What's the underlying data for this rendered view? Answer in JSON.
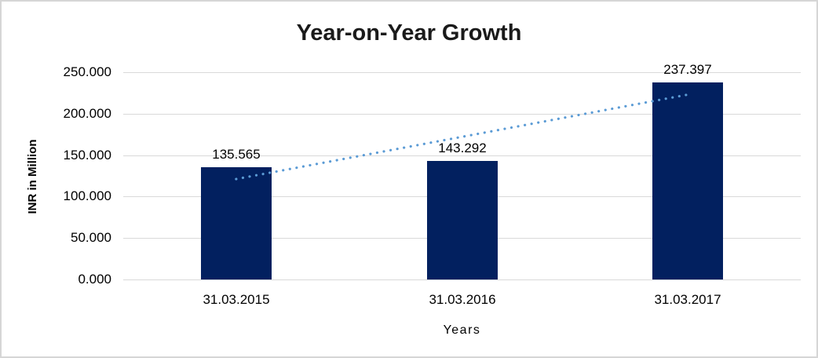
{
  "chart_data": {
    "type": "bar",
    "title": "Year-on-Year Growth",
    "categories": [
      "31.03.2015",
      "31.03.2016",
      "31.03.2017"
    ],
    "values": [
      135.565,
      143.292,
      237.397
    ],
    "value_labels": [
      "135.565",
      "143.292",
      "237.397"
    ],
    "xlabel": "Years",
    "ylabel": "INR in Million",
    "ylim": [
      0,
      250
    ],
    "ytick_step": 50,
    "ytick_labels": [
      "0.000",
      "50.000",
      "100.000",
      "150.000",
      "200.000",
      "250.000"
    ],
    "grid": true,
    "legend": "none",
    "bar_color": "#02205f",
    "gridline_color": "#d9d9d9",
    "trendline": {
      "type": "linear",
      "style": "dotted",
      "color": "#5b9bd5"
    }
  }
}
